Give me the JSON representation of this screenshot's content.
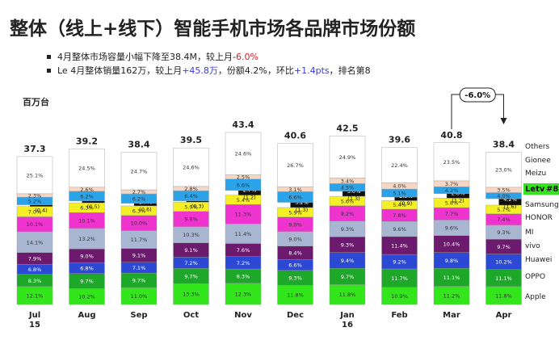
{
  "title": "整体（线上+线下）智能手机市场各品牌市场份额",
  "bullets": [
    {
      "pre": "4月整体市场容量小幅下降至38.4M，较上月-",
      "hl": "6.0%",
      "post": "",
      "hl_color": "red"
    },
    {
      "pre": "Le 4月整体销量162万，较上月",
      "hl": "+45.8万",
      "mid": "，份额4.2%，环比",
      "hl2": "+1.4pts",
      "post": "，排名第8",
      "hl_color": "blue"
    }
  ],
  "unit": "百万台",
  "annotation": "-6.0%",
  "chart_data": {
    "type": "bar",
    "stacked": true,
    "categories": [
      "Jul 15",
      "Aug",
      "Sep",
      "Oct",
      "Nov",
      "Dec",
      "Jan 16",
      "Feb",
      "Mar",
      "Apr"
    ],
    "totals": [
      "37.3",
      "39.2",
      "38.4",
      "39.5",
      "43.4",
      "40.6",
      "42.5",
      "39.6",
      "40.8",
      "38.4"
    ],
    "series": [
      {
        "name": "Apple",
        "color": "#33e61b",
        "values": [
          "12.1%",
          "10.2%",
          "11.0%",
          "13.3%",
          "12.3%",
          "11.8%",
          "11.8%",
          "10.9%",
          "11.2%",
          "11.8%"
        ]
      },
      {
        "name": "OPPO",
        "color": "#1ea82a",
        "values": [
          "8.3%",
          "9.7%",
          "9.7%",
          "9.7%",
          "8.3%",
          "9.3%",
          "9.7%",
          "11.7%",
          "11.1%",
          "11.1%"
        ]
      },
      {
        "name": "Huawei",
        "color": "#2c49d6",
        "values": [
          "6.8%",
          "6.8%",
          "7.1%",
          "7.2%",
          "7.2%",
          "6.6%",
          "9.4%",
          "9.2%",
          "9.8%",
          "10.2%"
        ]
      },
      {
        "name": "vivo",
        "color": "#6b1a6e",
        "values": [
          "7.9%",
          "9.0%",
          "9.1%",
          "9.1%",
          "7.6%",
          "8.4%",
          "9.3%",
          "11.4%",
          "10.4%",
          "9.7%"
        ]
      },
      {
        "name": "MI",
        "color": "#a9b6d2",
        "values": [
          "14.1%",
          "13.2%",
          "11.7%",
          "10.3%",
          "11.4%",
          "9.0%",
          "9.3%",
          "9.6%",
          "9.6%",
          "9.3%"
        ]
      },
      {
        "name": "HONOR",
        "color": "#ee33cf",
        "values": [
          "10.1%",
          "10.1%",
          "10.0%",
          "9.8%",
          "11.3%",
          "9.0%",
          "9.2%",
          "7.8%",
          "7.7%",
          "7.4%"
        ]
      },
      {
        "name": "Samsung",
        "color": "#f5ef25",
        "values": [
          "7.0%",
          "6.3%",
          "6.3%",
          "5.9%",
          "5.4%",
          "5.9%",
          "5.6%",
          "5.4%",
          "5.8%",
          "5.7%"
        ]
      },
      {
        "name": "Letv",
        "color": "#111111",
        "values": [
          "1.1% (0.4)",
          "1.2% (0.5)",
          "1.7% (0.6)",
          "0.8% (0.3)",
          "2.7% (1.2)",
          "3.2% (1.3)",
          "3.0% (1.3)",
          "2.3% (0.9)",
          "2.8% (1.2)",
          "4.2% (1.6)"
        ]
      },
      {
        "name": "Meizu",
        "color": "#2aa3e8",
        "values": [
          "5.2%",
          "6.2%",
          "6.2%",
          "6.4%",
          "6.6%",
          "6.6%",
          "4.5%",
          "5.1%",
          "4.2%",
          "4.0%"
        ]
      },
      {
        "name": "Gionee",
        "color": "#f7d7c4",
        "values": [
          "2.3%",
          "2.6%",
          "2.7%",
          "2.8%",
          "2.5%",
          "3.1%",
          "3.4%",
          "4.0%",
          "3.7%",
          "3.5%"
        ]
      },
      {
        "name": "Others",
        "color": "#ffffff",
        "values": [
          "25.1%",
          "24.5%",
          "24.7%",
          "24.6%",
          "24.6%",
          "26.7%",
          "24.9%",
          "22.4%",
          "23.5%",
          "23.0%"
        ]
      }
    ],
    "legend": [
      "Others",
      "Gionee",
      "Meizu",
      "Letv",
      "#8",
      "Samsung",
      "HONOR",
      "MI",
      "vivo",
      "Huawei",
      "OPPO",
      "Apple"
    ]
  }
}
